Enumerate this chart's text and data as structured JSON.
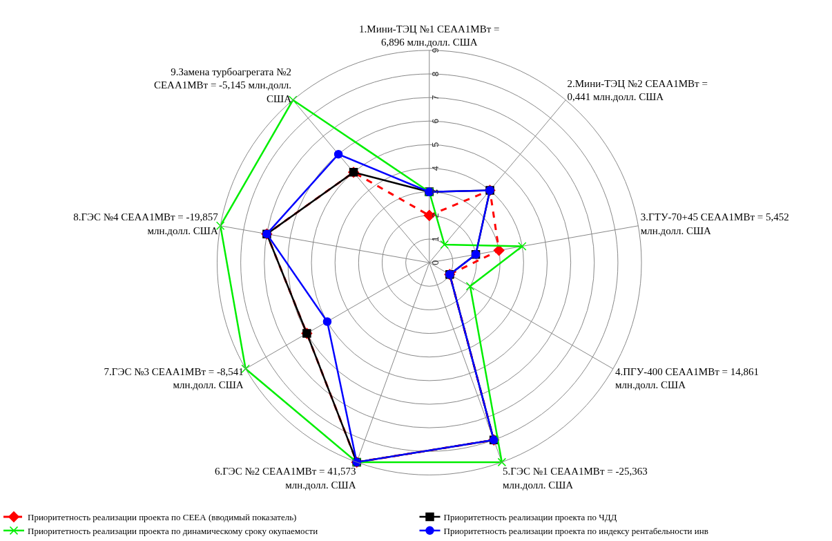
{
  "chart_data": {
    "type": "radar",
    "categories": [
      "1.Мини-ТЭЦ №1 СЕАА1МВт = 6,896 млн.долл. США",
      "2.Мини-ТЭЦ №2 СЕАА1МВт = 0,441 млн.долл. США",
      "3.ГТУ-70+45 СЕАА1МВт = 5,452 млн.долл. США",
      "4.ПГУ-400 СЕАА1МВт = 14,861 млн.долл. США",
      "5.ГЭС №1 СЕАА1МВт = -25,363 млн.долл. США",
      "6.ГЭС №2 СЕАА1МВт = 41,573 млн.долл. США",
      "7.ГЭС №3 СЕАА1МВт = -8,541 млн.долл. США",
      "8.ГЭС №4 СЕАА1МВт = -19,857 млн.долл. США",
      "9.Замена турбоагрегата №2 СЕАА1МВт = -5,145 млн.долл. США"
    ],
    "series": [
      {
        "name": "Приоритетность реализации проекта по СЕЕА (вводимый показатель)",
        "color": "#ff0000",
        "marker": "diamond",
        "line_style": "dashed",
        "values": [
          2,
          4,
          3,
          1,
          8,
          9,
          6,
          7,
          5
        ]
      },
      {
        "name": "Приоритетность реализации проекта по ЧДД",
        "color": "#000000",
        "marker": "square",
        "line_style": "solid",
        "values": [
          3,
          4,
          2,
          1,
          8,
          9,
          6,
          7,
          5
        ]
      },
      {
        "name": "Приоритетность реализации проекта по динамическому сроку окупаемости",
        "color": "#00ee00",
        "marker": "cross",
        "line_style": "solid",
        "values": [
          3,
          1,
          4,
          2,
          9,
          9,
          9,
          9,
          9
        ]
      },
      {
        "name": "Приоритетность реализации проекта по индексу рентабельности инв",
        "color": "#0000ff",
        "marker": "circle",
        "line_style": "solid",
        "values": [
          3,
          4,
          2,
          1,
          8,
          9,
          5,
          7,
          6
        ]
      }
    ],
    "ylim": [
      0,
      9
    ],
    "yticks": [
      0,
      1,
      2,
      3,
      4,
      5,
      6,
      7,
      8,
      9
    ],
    "grid": true,
    "legend": "bottom"
  }
}
